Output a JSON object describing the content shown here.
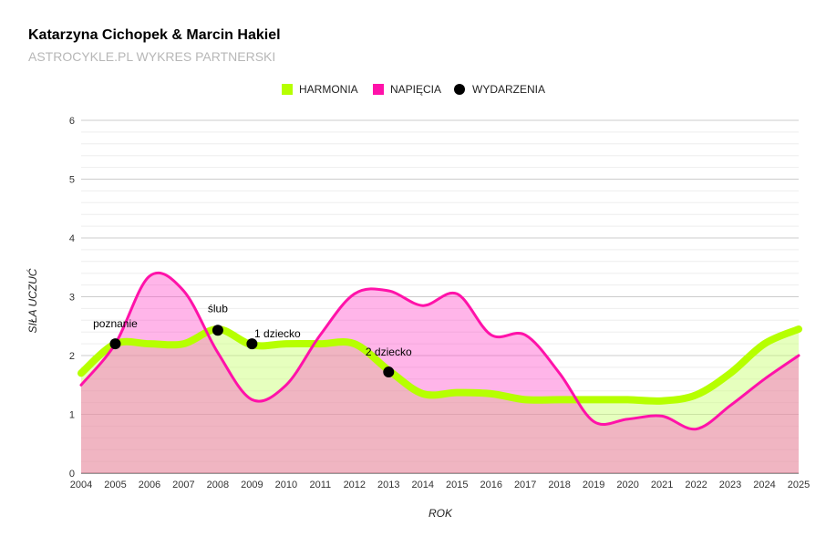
{
  "chart_data": {
    "type": "area",
    "title": "Katarzyna Cichopek & Marcin Hakiel",
    "subtitle": "ASTROCYKLE.PL WYKRES PARTNERSKI",
    "xlabel": "ROK",
    "ylabel": "SIŁA UCZUĆ",
    "ylim": [
      0,
      6
    ],
    "yticks": [
      "0",
      "1",
      "2",
      "3",
      "4",
      "5",
      "6"
    ],
    "x": [
      2004,
      2005,
      2006,
      2007,
      2008,
      2009,
      2010,
      2011,
      2012,
      2013,
      2014,
      2015,
      2016,
      2017,
      2018,
      2019,
      2020,
      2021,
      2022,
      2023,
      2024,
      2025
    ],
    "series": [
      {
        "name": "HARMONIA",
        "color": "#b6ff00",
        "values": [
          1.7,
          2.2,
          2.2,
          2.2,
          2.45,
          2.18,
          2.2,
          2.2,
          2.2,
          1.75,
          1.35,
          1.37,
          1.35,
          1.25,
          1.25,
          1.25,
          1.25,
          1.23,
          1.33,
          1.7,
          2.2,
          2.45
        ]
      },
      {
        "name": "NAPIĘCIA",
        "color": "#ff12a9",
        "values": [
          1.5,
          2.2,
          3.35,
          3.1,
          2.05,
          1.25,
          1.5,
          2.35,
          3.05,
          3.1,
          2.85,
          3.05,
          2.35,
          2.35,
          1.7,
          0.88,
          0.92,
          0.97,
          0.75,
          1.15,
          1.6,
          2.0
        ]
      }
    ],
    "events": {
      "name": "WYDARZENIA",
      "color": "#000000",
      "points": [
        {
          "x": 2005,
          "y": 2.2,
          "label": "poznanie"
        },
        {
          "x": 2008,
          "y": 2.43,
          "label": "ślub"
        },
        {
          "x": 2009,
          "y": 2.2,
          "label": "1 dziecko"
        },
        {
          "x": 2013,
          "y": 1.72,
          "label": "2 dziecko"
        }
      ]
    },
    "legend": "top-center",
    "grid": true
  }
}
